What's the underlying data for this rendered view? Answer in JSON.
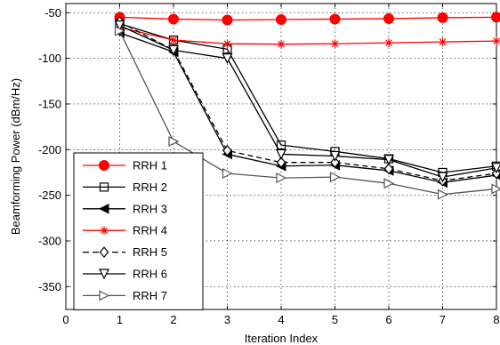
{
  "chart_data": {
    "type": "line",
    "title": "",
    "xlabel": "Iteration Index",
    "ylabel": "Beamforming Power (dBm/Hz)",
    "xlim": [
      0,
      8
    ],
    "ylim": [
      -375,
      -40
    ],
    "xticks": [
      0,
      1,
      2,
      3,
      4,
      5,
      6,
      7,
      8
    ],
    "yticks": [
      -50,
      -100,
      -150,
      -200,
      -250,
      -300,
      -350
    ],
    "grid": true,
    "legend_position": "bottom-left",
    "x": [
      1,
      2,
      3,
      4,
      5,
      6,
      7,
      8
    ],
    "series": [
      {
        "name": "RRH 1",
        "color": "#ff0000",
        "line": "solid",
        "marker": "filled-circle",
        "values": [
          -55,
          -57,
          -58,
          -57.5,
          -57,
          -56.5,
          -55.5,
          -55
        ]
      },
      {
        "name": "RRH 2",
        "color": "#000000",
        "line": "solid",
        "marker": "square",
        "values": [
          -62,
          -80,
          -90,
          -195,
          -202,
          -210,
          -225,
          -218
        ]
      },
      {
        "name": "RRH 3",
        "color": "#000000",
        "line": "solid",
        "marker": "left-triangle",
        "values": [
          -72,
          -93,
          -205,
          -218,
          -217,
          -223,
          -236,
          -228
        ]
      },
      {
        "name": "RRH 4",
        "color": "#ff0000",
        "line": "solid",
        "marker": "asterisk",
        "values": [
          -66,
          -80,
          -84,
          -84.5,
          -84,
          -83,
          -82,
          -81
        ]
      },
      {
        "name": "RRH 5",
        "color": "#000000",
        "line": "dashed",
        "marker": "diamond",
        "values": [
          -60,
          -91,
          -201,
          -214,
          -214,
          -221,
          -234,
          -226
        ]
      },
      {
        "name": "RRH 6",
        "color": "#000000",
        "line": "solid",
        "marker": "down-triangle",
        "values": [
          -64,
          -91,
          -100,
          -205,
          -207,
          -211,
          -230,
          -220
        ]
      },
      {
        "name": "RRH 7",
        "color": "#555555",
        "line": "solid",
        "marker": "right-triangle",
        "values": [
          -70,
          -191,
          -226,
          -231,
          -230,
          -237,
          -249,
          -243
        ]
      }
    ]
  }
}
